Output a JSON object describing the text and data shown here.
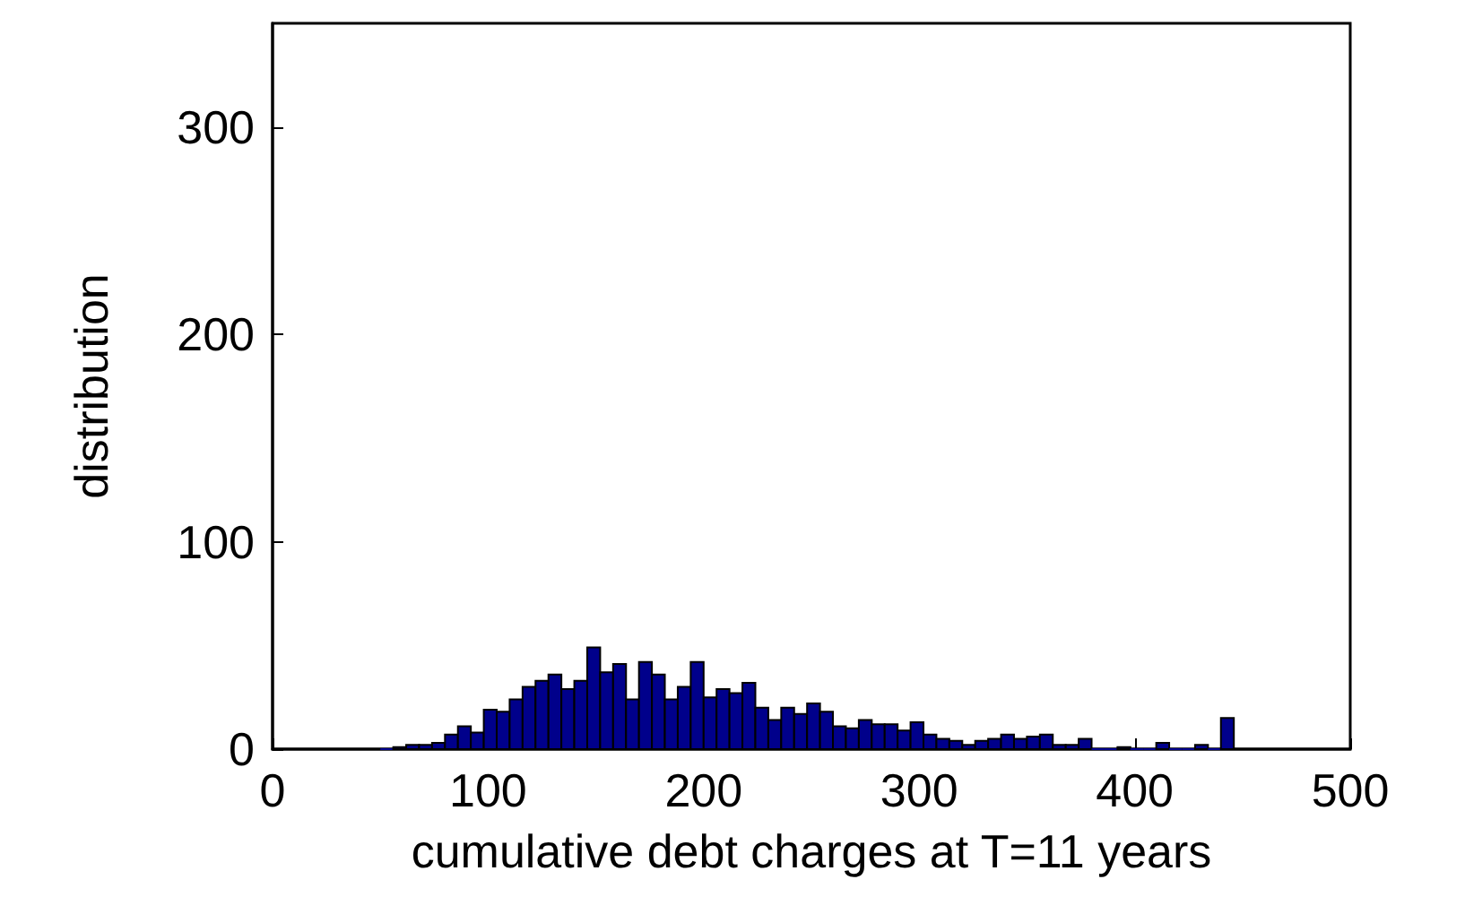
{
  "chart_data": {
    "type": "histogram",
    "xlabel": "cumulative debt charges at T=11 years",
    "ylabel": "distribution",
    "bins": [
      50,
      56,
      62,
      68,
      74,
      80,
      86,
      92,
      98,
      104,
      110,
      116,
      122,
      128,
      134,
      140,
      146,
      152,
      158,
      164,
      170,
      176,
      182,
      188,
      194,
      200,
      206,
      212,
      218,
      224,
      230,
      236,
      242,
      248,
      254,
      260,
      266,
      272,
      278,
      284,
      290,
      296,
      302,
      308,
      314,
      320,
      326,
      332,
      338,
      344,
      350,
      356,
      362,
      368,
      374,
      380,
      386,
      392,
      398,
      404,
      410,
      416,
      422,
      428,
      434,
      440,
      446
    ],
    "values": [
      0,
      1,
      2,
      2,
      3,
      7,
      11,
      8,
      19,
      18,
      24,
      30,
      33,
      36,
      29,
      33,
      49,
      37,
      41,
      24,
      42,
      36,
      24,
      30,
      42,
      25,
      29,
      27,
      32,
      20,
      14,
      20,
      17,
      22,
      18,
      11,
      10,
      14,
      12,
      12,
      9,
      13,
      7,
      5,
      4,
      2,
      4,
      5,
      7,
      5,
      6,
      7,
      2,
      2,
      5,
      0,
      0,
      1,
      0,
      0,
      3,
      0,
      0,
      2,
      0,
      15
    ],
    "color": "#00008b",
    "xlim": [
      0,
      500
    ],
    "xticks": [
      0,
      100,
      200,
      300,
      400,
      500
    ],
    "ylim": [
      0,
      350
    ],
    "yticks": [
      0,
      100,
      200,
      300
    ],
    "grid": false
  }
}
